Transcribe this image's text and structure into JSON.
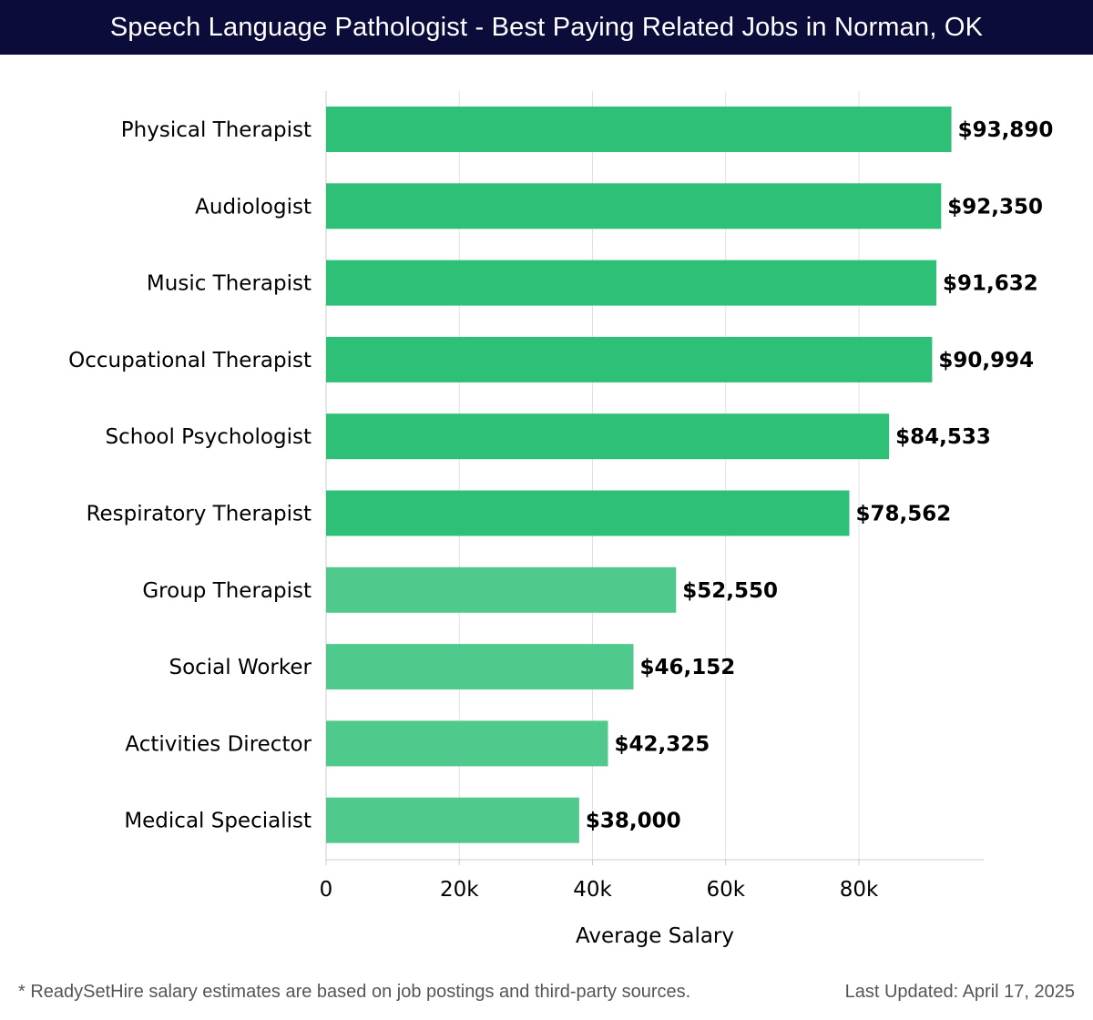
{
  "header": {
    "title": "Speech Language Pathologist - Best Paying Related Jobs in Norman, OK"
  },
  "chart_data": {
    "type": "bar",
    "orientation": "horizontal",
    "title": "Speech Language Pathologist - Best Paying Related Jobs in Norman, OK",
    "xlabel": "Average Salary",
    "ylabel": "",
    "xlim": [
      0,
      98000
    ],
    "xticks": [
      0,
      20000,
      40000,
      60000,
      80000
    ],
    "xtick_labels": [
      "0",
      "20k",
      "40k",
      "60k",
      "80k"
    ],
    "grid": true,
    "categories": [
      "Physical Therapist",
      "Audiologist",
      "Music Therapist",
      "Occupational Therapist",
      "School Psychologist",
      "Respiratory Therapist",
      "Group Therapist",
      "Social Worker",
      "Activities Director",
      "Medical Specialist"
    ],
    "values": [
      93890,
      92350,
      91632,
      90994,
      84533,
      78562,
      52550,
      46152,
      42325,
      38000
    ],
    "value_labels": [
      "$93,890",
      "$92,350",
      "$91,632",
      "$90,994",
      "$84,533",
      "$78,562",
      "$52,550",
      "$46,152",
      "$42,325",
      "$38,000"
    ],
    "colors": {
      "high": "#2ec077",
      "low": "#50c98d",
      "grid": "#e2e2e2",
      "axis": "#cccccc",
      "text": "#000000"
    }
  },
  "footer": {
    "note": "* ReadySetHire salary estimates are based on job postings and third-party sources.",
    "updated": "Last Updated: April 17, 2025"
  }
}
